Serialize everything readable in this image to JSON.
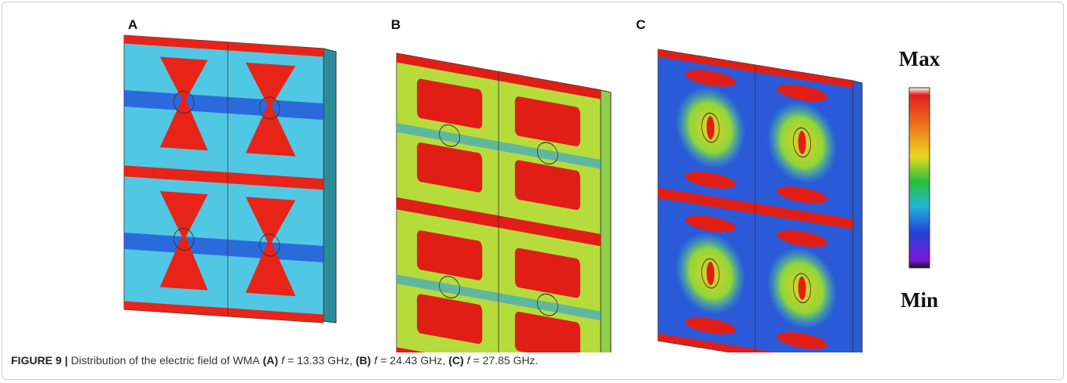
{
  "panels": [
    {
      "label": "A"
    },
    {
      "label": "B"
    },
    {
      "label": "C"
    }
  ],
  "colorbar": {
    "max_label": "Max",
    "min_label": "Min"
  },
  "caption": {
    "label": "FIGURE 9 |",
    "text": "Distribution of the electric field of WMA",
    "items": [
      {
        "tag": "(A)",
        "var": "f",
        "value": "= 13.33 GHz,"
      },
      {
        "tag": "(B)",
        "var": "f",
        "value": "= 24.43 GHz,"
      },
      {
        "tag": "(C)",
        "var": "f",
        "value": "= 27.85 GHz."
      }
    ]
  }
}
